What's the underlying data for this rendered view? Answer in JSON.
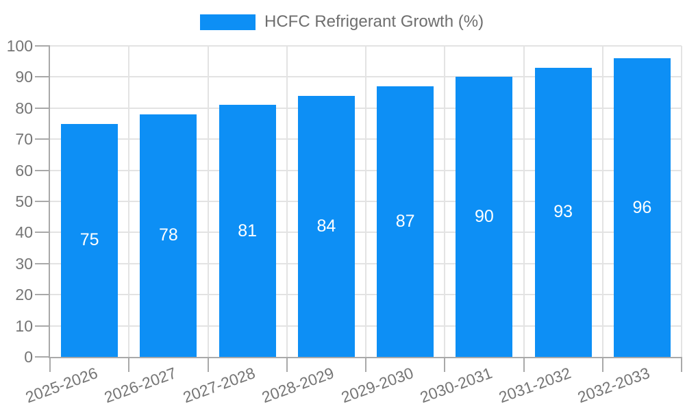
{
  "chart_data": {
    "type": "bar",
    "title": "",
    "xlabel": "",
    "ylabel": "",
    "legend": "HCFC Refrigerant Growth (%)",
    "legend_position": "top",
    "categories": [
      "2025-2026",
      "2026-2027",
      "2027-2028",
      "2028-2029",
      "2029-2030",
      "2030-2031",
      "2031-2032",
      "2032-2033"
    ],
    "values": [
      75,
      78,
      81,
      84,
      87,
      90,
      93,
      96
    ],
    "value_labels_shown": true,
    "ylim": [
      0,
      100
    ],
    "ytick_step": 10,
    "yticks": [
      0,
      10,
      20,
      30,
      40,
      50,
      60,
      70,
      80,
      90,
      100
    ],
    "grid": true,
    "colors": {
      "bar": "#0d8ff5",
      "value_label": "#ffffff",
      "axis_text": "#757575",
      "axis_line": "#a9a9a9",
      "grid_line": "#e3e3e3",
      "legend_text": "#6e6e6e",
      "background": "#ffffff"
    }
  }
}
